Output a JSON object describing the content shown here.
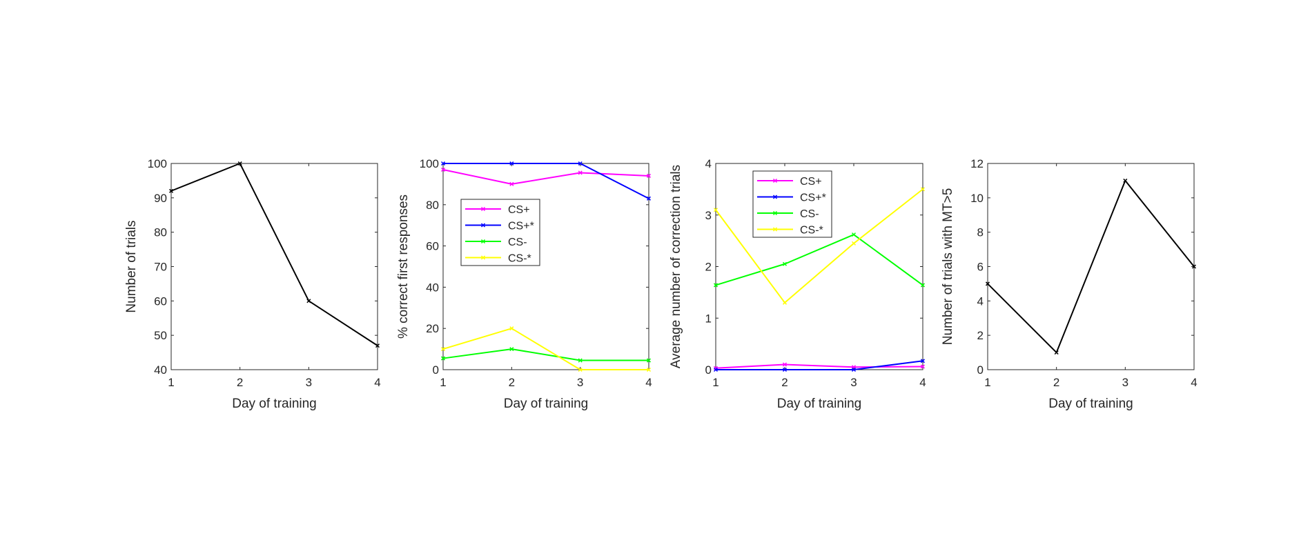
{
  "chart_data": [
    {
      "type": "line",
      "xlabel": "Day of training",
      "ylabel": "Number of trials",
      "xlim": [
        1,
        4
      ],
      "ylim": [
        40,
        100
      ],
      "xticks": [
        1,
        2,
        3,
        4
      ],
      "yticks": [
        40,
        50,
        60,
        70,
        80,
        90,
        100
      ],
      "x": [
        1,
        2,
        3,
        4
      ],
      "series": [
        {
          "values": [
            92,
            100,
            60,
            47
          ],
          "color": "#000000"
        }
      ],
      "legend": null
    },
    {
      "type": "line",
      "xlabel": "Day of training",
      "ylabel": "% correct first responses",
      "xlim": [
        1,
        4
      ],
      "ylim": [
        0,
        100
      ],
      "xticks": [
        1,
        2,
        3,
        4
      ],
      "yticks": [
        0,
        20,
        40,
        60,
        80,
        100
      ],
      "x": [
        1,
        2,
        3,
        4
      ],
      "series": [
        {
          "name": "CS+",
          "values": [
            97,
            90,
            95.5,
            94
          ],
          "color": "#ff00ff"
        },
        {
          "name": "CS+*",
          "values": [
            100,
            100,
            100,
            83
          ],
          "color": "#0000ff"
        },
        {
          "name": "CS-",
          "values": [
            5.5,
            10,
            4.5,
            4.5
          ],
          "color": "#00ff00"
        },
        {
          "name": "CS-*",
          "values": [
            10,
            20,
            0,
            0
          ],
          "color": "#ffff00"
        }
      ],
      "legend": "upper-left-middle"
    },
    {
      "type": "line",
      "xlabel": "Day of training",
      "ylabel": "Average number of correction trials",
      "xlim": [
        1,
        4
      ],
      "ylim": [
        0,
        4
      ],
      "xticks": [
        1,
        2,
        3,
        4
      ],
      "yticks": [
        0,
        1,
        2,
        3,
        4
      ],
      "x": [
        1,
        2,
        3,
        4
      ],
      "series": [
        {
          "name": "CS+",
          "values": [
            0.03,
            0.1,
            0.05,
            0.06
          ],
          "color": "#ff00ff"
        },
        {
          "name": "CS+*",
          "values": [
            0,
            0,
            0,
            0.17
          ],
          "color": "#0000ff"
        },
        {
          "name": "CS-",
          "values": [
            1.64,
            2.05,
            2.62,
            1.64
          ],
          "color": "#00ff00"
        },
        {
          "name": "CS-*",
          "values": [
            3.1,
            1.3,
            2.45,
            3.5
          ],
          "color": "#ffff00"
        }
      ],
      "legend": "top-left"
    },
    {
      "type": "line",
      "xlabel": "Day of training",
      "ylabel": "Number of trials with MT>5",
      "xlim": [
        1,
        4
      ],
      "ylim": [
        0,
        12
      ],
      "xticks": [
        1,
        2,
        3,
        4
      ],
      "yticks": [
        0,
        2,
        4,
        6,
        8,
        10,
        12
      ],
      "x": [
        1,
        2,
        3,
        4
      ],
      "series": [
        {
          "values": [
            5,
            1,
            11,
            6
          ],
          "color": "#000000"
        }
      ],
      "legend": null
    }
  ]
}
